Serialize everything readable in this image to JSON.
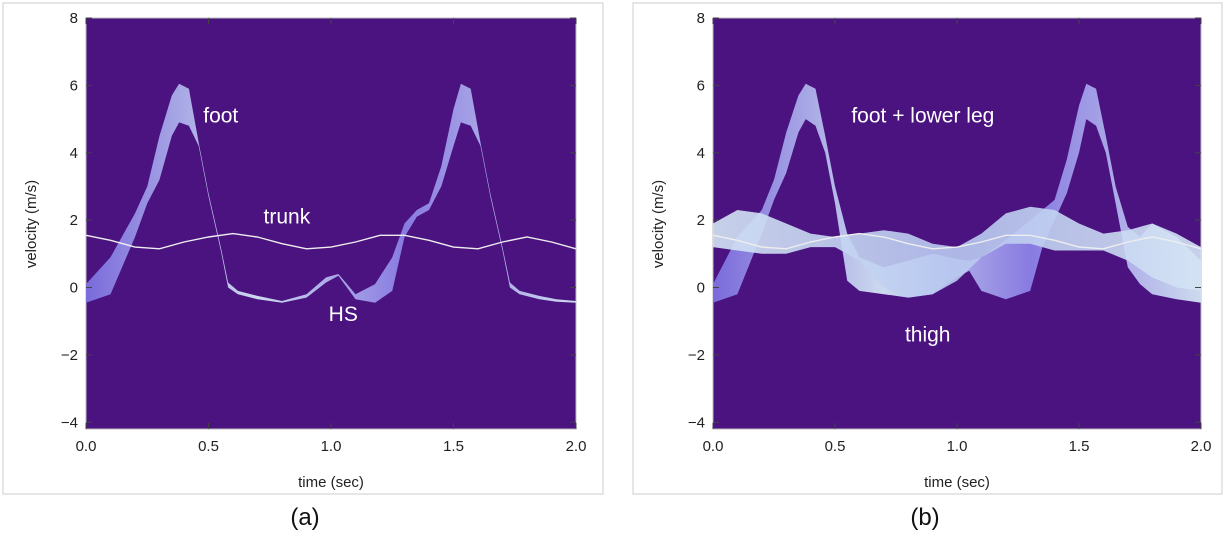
{
  "colors": {
    "plot_background": "#4a1380",
    "band_dark": "#7d6fe0",
    "band_light": "#d4e4f4",
    "trunk_line": "#eeeeee",
    "frame": "#bbbbbb"
  },
  "chart_data": [
    {
      "type": "area",
      "panel_label": "(a)",
      "xlabel": "time (sec)",
      "ylabel": "velocity (m/s)",
      "xlim": [
        0,
        2
      ],
      "ylim": [
        -4.2,
        8
      ],
      "xticks": [
        "0.0",
        "0.5",
        "1.0",
        "1.5",
        "2.0"
      ],
      "yticks": [
        "−4",
        "−2",
        "0",
        "2",
        "4",
        "6",
        "8"
      ],
      "grid": false,
      "legend": "none",
      "annotations": [
        {
          "text": "foot",
          "x": 0.55,
          "y": 4.9
        },
        {
          "text": "trunk",
          "x": 0.82,
          "y": 1.9
        },
        {
          "text": "HS",
          "x": 1.05,
          "y": -1.0
        }
      ],
      "series": [
        {
          "kind": "band",
          "x": [
            0.0,
            0.1,
            0.2,
            0.25,
            0.3,
            0.35,
            0.38,
            0.42,
            0.46,
            0.5,
            0.55,
            0.58,
            0.62,
            0.7,
            0.8,
            0.9,
            0.98,
            1.03,
            1.06,
            1.1,
            1.18,
            1.25,
            1.3,
            1.35,
            1.4,
            1.45,
            1.5,
            1.53,
            1.57,
            1.61,
            1.65,
            1.7,
            1.73,
            1.77,
            1.85,
            1.92,
            2.0
          ],
          "upper": [
            0.1,
            0.9,
            2.2,
            3.0,
            4.5,
            5.7,
            6.05,
            5.9,
            4.3,
            2.8,
            1.2,
            0.15,
            -0.1,
            -0.25,
            -0.4,
            -0.2,
            0.3,
            0.4,
            0.15,
            -0.2,
            0.1,
            0.9,
            1.9,
            2.3,
            2.5,
            3.6,
            5.3,
            6.05,
            5.9,
            4.3,
            2.8,
            1.2,
            0.15,
            -0.1,
            -0.25,
            -0.35,
            -0.4
          ],
          "lower": [
            -0.45,
            -0.2,
            1.5,
            2.5,
            3.2,
            4.5,
            4.9,
            4.8,
            4.2,
            2.7,
            1.1,
            0.0,
            -0.2,
            -0.35,
            -0.45,
            -0.3,
            0.15,
            0.35,
            0.05,
            -0.35,
            -0.45,
            -0.1,
            1.5,
            2.1,
            2.3,
            3.0,
            4.2,
            4.9,
            4.8,
            4.2,
            2.7,
            1.1,
            0.0,
            -0.2,
            -0.35,
            -0.42,
            -0.45
          ]
        },
        {
          "kind": "line",
          "x": [
            0.0,
            0.1,
            0.2,
            0.3,
            0.4,
            0.5,
            0.6,
            0.7,
            0.8,
            0.9,
            1.0,
            1.1,
            1.2,
            1.3,
            1.4,
            1.5,
            1.6,
            1.7,
            1.8,
            1.9,
            2.0
          ],
          "y": [
            1.55,
            1.4,
            1.2,
            1.15,
            1.35,
            1.5,
            1.6,
            1.5,
            1.3,
            1.15,
            1.2,
            1.35,
            1.55,
            1.55,
            1.4,
            1.2,
            1.15,
            1.35,
            1.5,
            1.35,
            1.15
          ]
        }
      ]
    },
    {
      "type": "area",
      "panel_label": "(b)",
      "xlabel": "time (sec)",
      "ylabel": "velocity (m/s)",
      "xlim": [
        0,
        2
      ],
      "ylim": [
        -4.2,
        8
      ],
      "xticks": [
        "0.0",
        "0.5",
        "1.0",
        "1.5",
        "2.0"
      ],
      "yticks": [
        "−4",
        "−2",
        "0",
        "2",
        "4",
        "6",
        "8"
      ],
      "grid": false,
      "legend": "none",
      "annotations": [
        {
          "text": "foot + lower leg",
          "x": 0.86,
          "y": 4.9
        },
        {
          "text": "thigh",
          "x": 0.88,
          "y": -1.6
        }
      ],
      "series": [
        {
          "kind": "band",
          "x": [
            0.0,
            0.1,
            0.2,
            0.25,
            0.3,
            0.35,
            0.38,
            0.42,
            0.46,
            0.5,
            0.55,
            0.6,
            0.7,
            0.8,
            0.9,
            1.0,
            1.05,
            1.1,
            1.2,
            1.3,
            1.35,
            1.4,
            1.45,
            1.5,
            1.53,
            1.57,
            1.61,
            1.65,
            1.7,
            1.75,
            1.8,
            1.9,
            2.0
          ],
          "upper": [
            0.1,
            1.5,
            2.3,
            3.2,
            4.6,
            5.7,
            6.05,
            5.9,
            4.5,
            3.0,
            1.6,
            0.9,
            0.6,
            0.8,
            1.0,
            0.85,
            0.8,
            0.9,
            1.4,
            2.0,
            2.3,
            2.6,
            3.8,
            5.4,
            6.05,
            5.9,
            4.5,
            3.0,
            1.8,
            1.5,
            1.9,
            1.5,
            0.8
          ],
          "lower": [
            -0.45,
            -0.2,
            1.6,
            2.6,
            3.4,
            4.6,
            5.0,
            4.8,
            4.0,
            2.5,
            0.2,
            -0.1,
            -0.2,
            -0.3,
            -0.2,
            0.3,
            0.5,
            -0.1,
            -0.35,
            -0.1,
            1.2,
            2.0,
            2.8,
            4.0,
            5.0,
            4.8,
            4.0,
            2.5,
            0.6,
            0.1,
            -0.2,
            -0.35,
            -0.45
          ]
        },
        {
          "kind": "band",
          "x": [
            0.0,
            0.1,
            0.2,
            0.3,
            0.4,
            0.5,
            0.6,
            0.7,
            0.8,
            0.9,
            1.0,
            1.1,
            1.2,
            1.3,
            1.4,
            1.5,
            1.6,
            1.7,
            1.8,
            1.9,
            2.0
          ],
          "upper": [
            1.9,
            2.3,
            2.2,
            1.9,
            1.6,
            1.5,
            1.6,
            1.7,
            1.6,
            1.3,
            1.2,
            1.6,
            2.2,
            2.4,
            2.3,
            1.9,
            1.6,
            1.7,
            1.9,
            1.6,
            1.2
          ],
          "lower": [
            1.2,
            1.1,
            1.0,
            1.0,
            1.2,
            1.2,
            0.8,
            0.0,
            -0.3,
            -0.2,
            0.2,
            0.9,
            1.3,
            1.3,
            1.1,
            1.1,
            1.1,
            0.8,
            0.3,
            0.0,
            -0.1
          ]
        },
        {
          "kind": "line",
          "x": [
            0.0,
            0.1,
            0.2,
            0.3,
            0.4,
            0.5,
            0.6,
            0.7,
            0.8,
            0.9,
            1.0,
            1.1,
            1.2,
            1.3,
            1.4,
            1.5,
            1.6,
            1.7,
            1.8,
            1.9,
            2.0
          ],
          "y": [
            1.55,
            1.4,
            1.2,
            1.15,
            1.35,
            1.5,
            1.6,
            1.5,
            1.3,
            1.15,
            1.2,
            1.35,
            1.55,
            1.55,
            1.4,
            1.2,
            1.15,
            1.35,
            1.5,
            1.35,
            1.15
          ]
        }
      ]
    }
  ]
}
